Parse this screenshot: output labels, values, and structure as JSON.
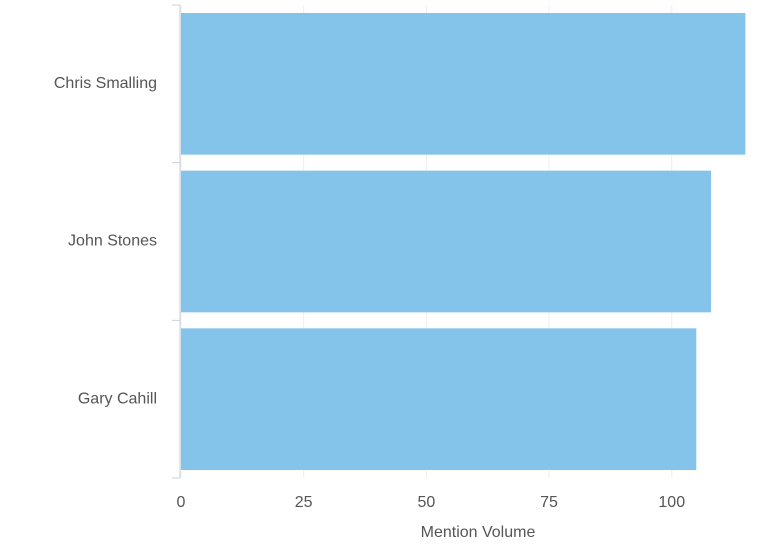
{
  "chart_data": {
    "type": "bar",
    "orientation": "horizontal",
    "x_label": "Mention Volume",
    "categories": [
      "Chris Smalling",
      "John Stones",
      "Gary Cahill"
    ],
    "values": [
      115,
      108,
      105
    ],
    "color": "#85c4ea",
    "xlim": [
      0,
      119
    ],
    "xticks": [
      0,
      25,
      50,
      75,
      100
    ],
    "grid": true
  }
}
